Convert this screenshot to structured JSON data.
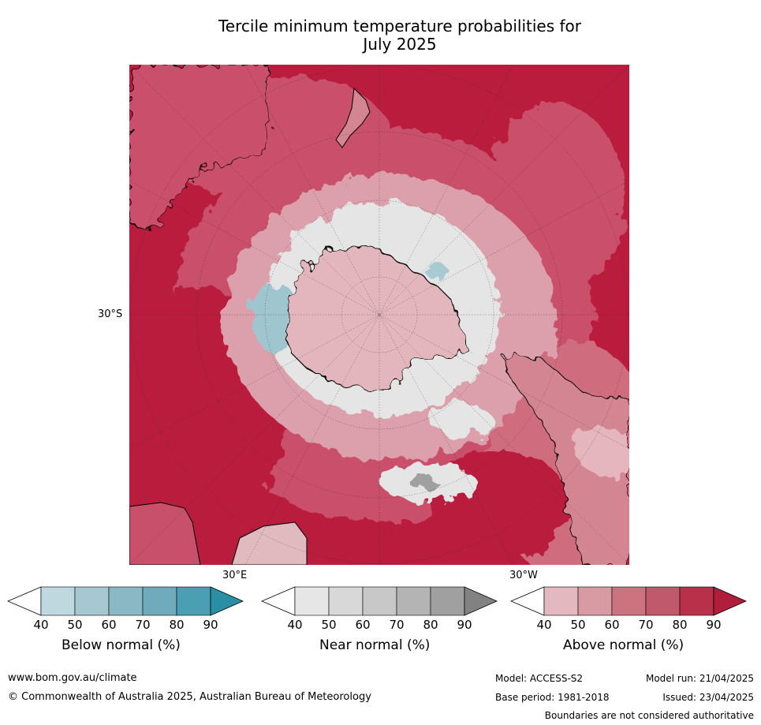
{
  "title": {
    "line1": "Tercile minimum temperature probabilities for",
    "line2": "July 2025"
  },
  "map": {
    "lat_label": "30°S",
    "lon_label_left": "30°E",
    "lon_label_right": "30°W",
    "colors": {
      "above_high": "#b91c3c",
      "above_mid": "#c9506a",
      "above_low": "#dba0ab",
      "near": "#e5e5e5",
      "below": "#9fc5cf",
      "land_outline": "#000000"
    }
  },
  "legends": {
    "below": {
      "title": "Below normal (%)",
      "colors": [
        "#bfd7df",
        "#a7c8d1",
        "#8ab9c5",
        "#6fabba",
        "#4aa0b2"
      ],
      "extend_color": "#2a8fa5"
    },
    "near": {
      "title": "Near normal (%)",
      "colors": [
        "#e6e6e6",
        "#d8d8d8",
        "#c8c8c8",
        "#b4b4b4",
        "#a0a0a0"
      ],
      "extend_color": "#828282"
    },
    "above": {
      "title": "Above normal (%)",
      "colors": [
        "#e3b9bf",
        "#d89ba4",
        "#cc7380",
        "#c0596b",
        "#b8304a"
      ],
      "extend_color": "#b01e3c"
    },
    "ticks": [
      "40",
      "50",
      "60",
      "70",
      "80",
      "90"
    ]
  },
  "footer": {
    "url": "www.bom.gov.au/climate",
    "copyright": "© Commonwealth of Australia 2025, Australian Bureau of Meteorology",
    "model": "Model: ACCESS-S2",
    "model_run": "Model run: 21/04/2025",
    "base_period": "Base period: 1981-2018",
    "issued": "Issued: 23/04/2025",
    "disclaimer": "Boundaries are not considered authoritative"
  }
}
